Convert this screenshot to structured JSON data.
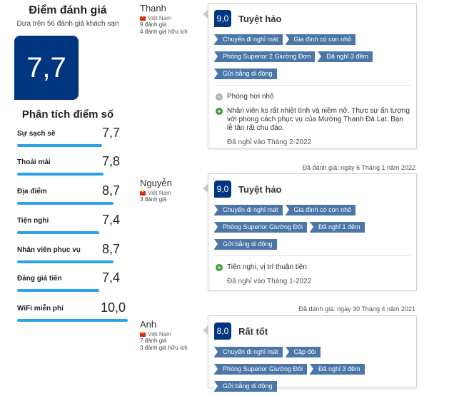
{
  "score_panel": {
    "title": "Điểm đánh giá",
    "subtitle": "Dựa trên 56 đánh giá khách sạn",
    "overall": "7,7",
    "breakdown_title": "Phân tích điểm số",
    "categories": [
      {
        "label": "Sự sạch sẽ",
        "score": "7,7",
        "level": 0.77
      },
      {
        "label": "Thoải mái",
        "score": "7,8",
        "level": 0.78
      },
      {
        "label": "Địa điểm",
        "score": "8,7",
        "level": 0.87
      },
      {
        "label": "Tiện nghi",
        "score": "7,4",
        "level": 0.74
      },
      {
        "label": "Nhân viên phục vụ",
        "score": "8,7",
        "level": 0.87
      },
      {
        "label": "Đáng giá tiền",
        "score": "7,4",
        "level": 0.74
      },
      {
        "label": "WiFi miễn phí",
        "score": "10,0",
        "level": 1.0
      }
    ]
  },
  "reviews": [
    {
      "name": "Thanh",
      "country": "Việt Nam",
      "reviews_count": "9 đánh giá",
      "helpful": "4 đánh giá hữu ích",
      "score": "9,0",
      "score_word": "Tuyệt hảo",
      "tags": [
        "Chuyến đi nghỉ mát",
        "Gia đình có con nhỏ",
        "Phòng Superior 2 Giường Đơn",
        "Đã nghỉ 3 đêm",
        "Gửi bằng di động"
      ],
      "negative": "Phòng hơi nhỏ",
      "positive": "Nhân viên ks rất nhiệt tình và niềm nở. Thực sự ấn tượng với phong cách phục vụ của Mường Thanh Đà Lạt. Bạn lễ tân rất chu đáo.",
      "stayed": "Đã nghỉ vào Tháng 2-2022"
    },
    {
      "review_date": "Đã đánh giá: ngày 6 Tháng 1 năm 2022",
      "name": "Nguyễn",
      "country": "Việt Nam",
      "reviews_count": "3 đánh giá",
      "score": "9,0",
      "score_word": "Tuyệt hảo",
      "tags": [
        "Chuyến đi nghỉ mát",
        "Gia đình có con nhỏ",
        "Phòng Superior Giường Đôi",
        "Đã nghỉ 1 đêm",
        "Gửi bằng di động"
      ],
      "positive": "Tiện nghi, vị trí thuận tiện",
      "stayed": "Đã nghỉ vào Tháng 1-2022"
    },
    {
      "review_date": "Đã đánh giá: ngày 30 Tháng 4 năm 2021",
      "name": "Anh",
      "country": "Việt Nam",
      "reviews_count": "7 đánh giá",
      "helpful": "3 đánh giá hữu ích",
      "score": "8,0",
      "score_word": "Rất tốt",
      "tags": [
        "Chuyến đi nghỉ mát",
        "Cặp đôi",
        "Phòng Superior Giường Đôi",
        "Đã nghỉ 3 đêm",
        "Gửi bằng di động"
      ]
    }
  ]
}
